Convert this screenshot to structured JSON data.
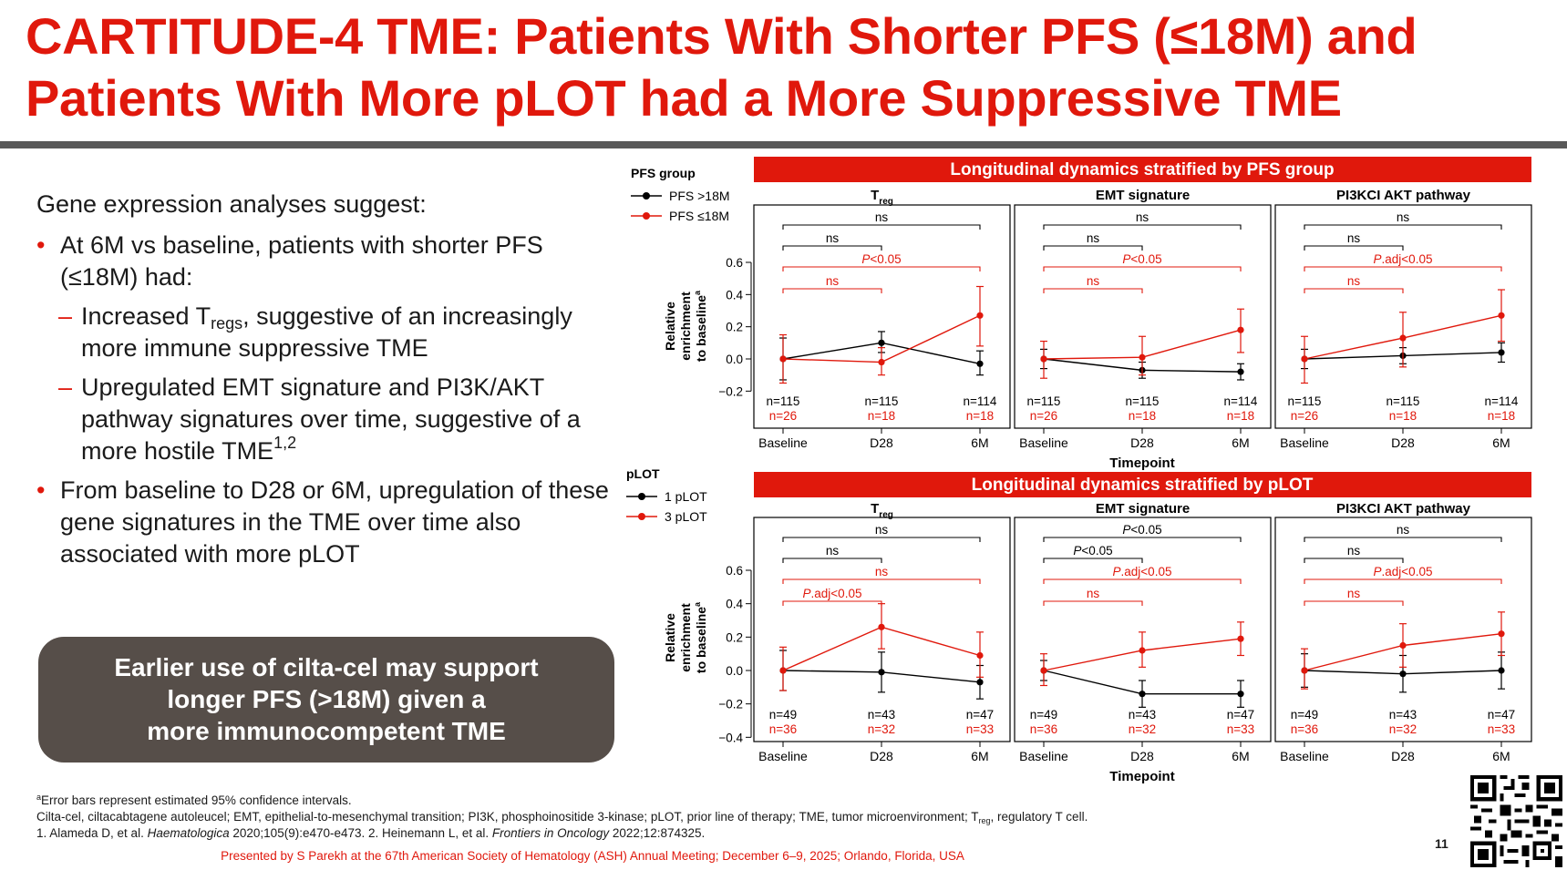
{
  "slide": {
    "title_line1": "CARTITUDE-4 TME: Patients With Shorter PFS (≤18M) and",
    "title_line2": "Patients With More pLOT had a More Suppressive TME",
    "page_number": "11",
    "presented": "Presented by S Parekh at the 67th American Society of Hematology (ASH) Annual Meeting; December 6–9, 2025; Orlando, Florida, USA"
  },
  "bullets": {
    "intro": "Gene expression analyses suggest:",
    "b1": "At 6M vs baseline, patients with shorter PFS (≤18M) had:",
    "b1a_pre": "Increased T",
    "b1a_sub": "regs",
    "b1a_post": ", suggestive of an increasingly more immune suppressive TME",
    "b1b": "Upregulated EMT signature and PI3K/AKT pathway signatures over time, suggestive of a more hostile TME",
    "b1b_sup": "1,2",
    "b2": "From baseline to D28 or 6M, upregulation of these gene signatures in the TME over time also associated with more pLOT"
  },
  "callout": {
    "line1": "Earlier use of cilta-cel may support",
    "line2": "longer PFS (>18M) given a",
    "line3": "more immunocompetent TME"
  },
  "footnotes": {
    "f1_sup": "a",
    "f1": "Error bars represent estimated 95% confidence intervals.",
    "f2_pre": "Cilta-cel, ciltacabtagene autoleucel; EMT, epithelial-to-mesenchymal transition; PI3K, phosphoinositide 3-kinase; pLOT, prior line of therapy; TME, tumor microenvironment; T",
    "f2_sub": "reg",
    "f2_post": ", regulatory T cell.",
    "f3_a": "1. Alameda D, et al. ",
    "f3_j1": "Haematologica",
    "f3_b": " 2020;105(9):e470-e473. 2. Heinemann L, et al. ",
    "f3_j2": "Frontiers in Oncology",
    "f3_c": " 2022;12:874325."
  },
  "colors": {
    "accent": "#e0180c",
    "black_series": "#000000",
    "red_series": "#e0180c",
    "callout_bg": "#564e49"
  },
  "chart_data": [
    {
      "type": "line",
      "section_title": "Longitudinal dynamics stratified by PFS group",
      "legend_title": "PFS group",
      "legend_placement": "left",
      "series_names": [
        "PFS >18M",
        "PFS ≤18M"
      ],
      "xlabel": "Timepoint",
      "ylabel_line1": "Relative",
      "ylabel_line2": "enrichment",
      "ylabel_line3": "to baseline",
      "ylabel_sup": "a",
      "x": [
        "Baseline",
        "D28",
        "6M"
      ],
      "ylim": [
        -0.25,
        0.75
      ],
      "yticks": [
        -0.2,
        0.0,
        0.2,
        0.4,
        0.6
      ],
      "ytick_labels": [
        "−0.2",
        "0.0",
        "0.2",
        "0.4",
        "0.6"
      ],
      "counts_black": [
        "n=115",
        "n=115",
        "n=114"
      ],
      "counts_red": [
        "n=26",
        "n=18",
        "n=18"
      ],
      "panels": [
        {
          "title": "T",
          "title_sub": "reg",
          "black": [
            0.0,
            0.1,
            -0.03
          ],
          "black_lo": [
            -0.13,
            0.04,
            -0.1
          ],
          "black_hi": [
            0.13,
            0.17,
            0.05
          ],
          "red": [
            0.0,
            -0.02,
            0.27
          ],
          "red_lo": [
            -0.15,
            -0.1,
            0.08
          ],
          "red_hi": [
            0.15,
            0.07,
            0.45
          ],
          "brackets": [
            {
              "from": 0,
              "to": 2,
              "color": "black",
              "label": "ns",
              "italic_prefix": ""
            },
            {
              "from": 0,
              "to": 1,
              "color": "black",
              "label": "ns",
              "italic_prefix": ""
            },
            {
              "from": 0,
              "to": 2,
              "color": "red",
              "label": "<0.05",
              "italic_prefix": "P"
            },
            {
              "from": 0,
              "to": 1,
              "color": "red",
              "label": "ns",
              "italic_prefix": ""
            }
          ]
        },
        {
          "title": "EMT signature",
          "title_sub": "",
          "black": [
            0.0,
            -0.07,
            -0.08
          ],
          "black_lo": [
            -0.06,
            -0.12,
            -0.13
          ],
          "black_hi": [
            0.06,
            -0.02,
            -0.03
          ],
          "red": [
            0.0,
            0.01,
            0.18
          ],
          "red_lo": [
            -0.12,
            -0.1,
            0.04
          ],
          "red_hi": [
            0.11,
            0.14,
            0.31
          ],
          "brackets": [
            {
              "from": 0,
              "to": 2,
              "color": "black",
              "label": "ns",
              "italic_prefix": ""
            },
            {
              "from": 0,
              "to": 1,
              "color": "black",
              "label": "ns",
              "italic_prefix": ""
            },
            {
              "from": 0,
              "to": 2,
              "color": "red",
              "label": "<0.05",
              "italic_prefix": "P"
            },
            {
              "from": 0,
              "to": 1,
              "color": "red",
              "label": "ns",
              "italic_prefix": ""
            }
          ]
        },
        {
          "title": "PI3KCI AKT pathway",
          "title_sub": "",
          "black": [
            0.0,
            0.02,
            0.04
          ],
          "black_lo": [
            -0.06,
            -0.03,
            -0.02
          ],
          "black_hi": [
            0.06,
            0.07,
            0.1
          ],
          "red": [
            0.0,
            0.13,
            0.27
          ],
          "red_lo": [
            -0.15,
            -0.05,
            0.11
          ],
          "red_hi": [
            0.14,
            0.29,
            0.43
          ],
          "brackets": [
            {
              "from": 0,
              "to": 2,
              "color": "black",
              "label": "ns",
              "italic_prefix": ""
            },
            {
              "from": 0,
              "to": 1,
              "color": "black",
              "label": "ns",
              "italic_prefix": ""
            },
            {
              "from": 0,
              "to": 2,
              "color": "red",
              "label": ".adj<0.05",
              "italic_prefix": "P"
            },
            {
              "from": 0,
              "to": 1,
              "color": "red",
              "label": "ns",
              "italic_prefix": ""
            }
          ]
        }
      ]
    },
    {
      "type": "line",
      "section_title": "Longitudinal dynamics stratified by pLOT",
      "legend_title": "pLOT",
      "legend_placement": "left",
      "series_names": [
        "1 pLOT",
        "3 pLOT"
      ],
      "xlabel": "Timepoint",
      "ylabel_line1": "Relative",
      "ylabel_line2": "enrichment",
      "ylabel_line3": "to baseline",
      "ylabel_sup": "a",
      "x": [
        "Baseline",
        "D28",
        "6M"
      ],
      "ylim": [
        -0.42,
        0.75
      ],
      "yticks": [
        -0.4,
        -0.2,
        0.0,
        0.2,
        0.4,
        0.6
      ],
      "ytick_labels": [
        "−0.4",
        "−0.2",
        "0.0",
        "0.2",
        "0.4",
        "0.6"
      ],
      "counts_black": [
        "n=49",
        "n=43",
        "n=47"
      ],
      "counts_red": [
        "n=36",
        "n=32",
        "n=33"
      ],
      "panels": [
        {
          "title": "T",
          "title_sub": "reg",
          "black": [
            0.0,
            -0.01,
            -0.07
          ],
          "black_lo": [
            -0.12,
            -0.13,
            -0.17
          ],
          "black_hi": [
            0.12,
            0.11,
            0.03
          ],
          "red": [
            0.0,
            0.26,
            0.09
          ],
          "red_lo": [
            -0.12,
            0.13,
            -0.04
          ],
          "red_hi": [
            0.14,
            0.4,
            0.23
          ],
          "brackets": [
            {
              "from": 0,
              "to": 2,
              "color": "black",
              "label": "ns",
              "italic_prefix": ""
            },
            {
              "from": 0,
              "to": 1,
              "color": "black",
              "label": "ns",
              "italic_prefix": ""
            },
            {
              "from": 0,
              "to": 2,
              "color": "red",
              "label": "ns",
              "italic_prefix": ""
            },
            {
              "from": 0,
              "to": 1,
              "color": "red",
              "label": ".adj<0.05",
              "italic_prefix": "P"
            }
          ]
        },
        {
          "title": "EMT signature",
          "title_sub": "",
          "black": [
            0.0,
            -0.14,
            -0.14
          ],
          "black_lo": [
            -0.06,
            -0.22,
            -0.22
          ],
          "black_hi": [
            0.06,
            -0.06,
            -0.06
          ],
          "red": [
            0.0,
            0.12,
            0.19
          ],
          "red_lo": [
            -0.09,
            0.02,
            0.09
          ],
          "red_hi": [
            0.1,
            0.23,
            0.29
          ],
          "brackets": [
            {
              "from": 0,
              "to": 2,
              "color": "black",
              "label": "<0.05",
              "italic_prefix": "P"
            },
            {
              "from": 0,
              "to": 1,
              "color": "black",
              "label": "<0.05",
              "italic_prefix": "P"
            },
            {
              "from": 0,
              "to": 2,
              "color": "red",
              "label": ".adj<0.05",
              "italic_prefix": "P"
            },
            {
              "from": 0,
              "to": 1,
              "color": "red",
              "label": "ns",
              "italic_prefix": ""
            }
          ]
        },
        {
          "title": "PI3KCI AKT pathway",
          "title_sub": "",
          "black": [
            0.0,
            -0.02,
            0.0
          ],
          "black_lo": [
            -0.1,
            -0.13,
            -0.11
          ],
          "black_hi": [
            0.1,
            0.09,
            0.11
          ],
          "red": [
            0.0,
            0.15,
            0.22
          ],
          "red_lo": [
            -0.11,
            0.02,
            0.09
          ],
          "red_hi": [
            0.13,
            0.28,
            0.35
          ],
          "brackets": [
            {
              "from": 0,
              "to": 2,
              "color": "black",
              "label": "ns",
              "italic_prefix": ""
            },
            {
              "from": 0,
              "to": 1,
              "color": "black",
              "label": "ns",
              "italic_prefix": ""
            },
            {
              "from": 0,
              "to": 2,
              "color": "red",
              "label": ".adj<0.05",
              "italic_prefix": "P"
            },
            {
              "from": 0,
              "to": 1,
              "color": "red",
              "label": "ns",
              "italic_prefix": ""
            }
          ]
        }
      ]
    }
  ]
}
